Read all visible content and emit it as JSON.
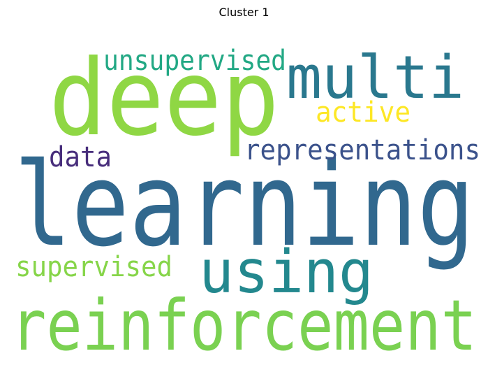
{
  "title": "Cluster 1",
  "words": [
    {
      "text": "learning",
      "color": "#31688e"
    },
    {
      "text": "deep",
      "color": "#8fd744"
    },
    {
      "text": "reinforcement",
      "color": "#7ad151"
    },
    {
      "text": "multi",
      "color": "#2a788e"
    },
    {
      "text": "using",
      "color": "#23888e"
    },
    {
      "text": "unsupervised",
      "color": "#22a884"
    },
    {
      "text": "representations",
      "color": "#3b528b"
    },
    {
      "text": "supervised",
      "color": "#86d549"
    },
    {
      "text": "active",
      "color": "#fde725"
    },
    {
      "text": "data",
      "color": "#472d7b"
    }
  ]
}
